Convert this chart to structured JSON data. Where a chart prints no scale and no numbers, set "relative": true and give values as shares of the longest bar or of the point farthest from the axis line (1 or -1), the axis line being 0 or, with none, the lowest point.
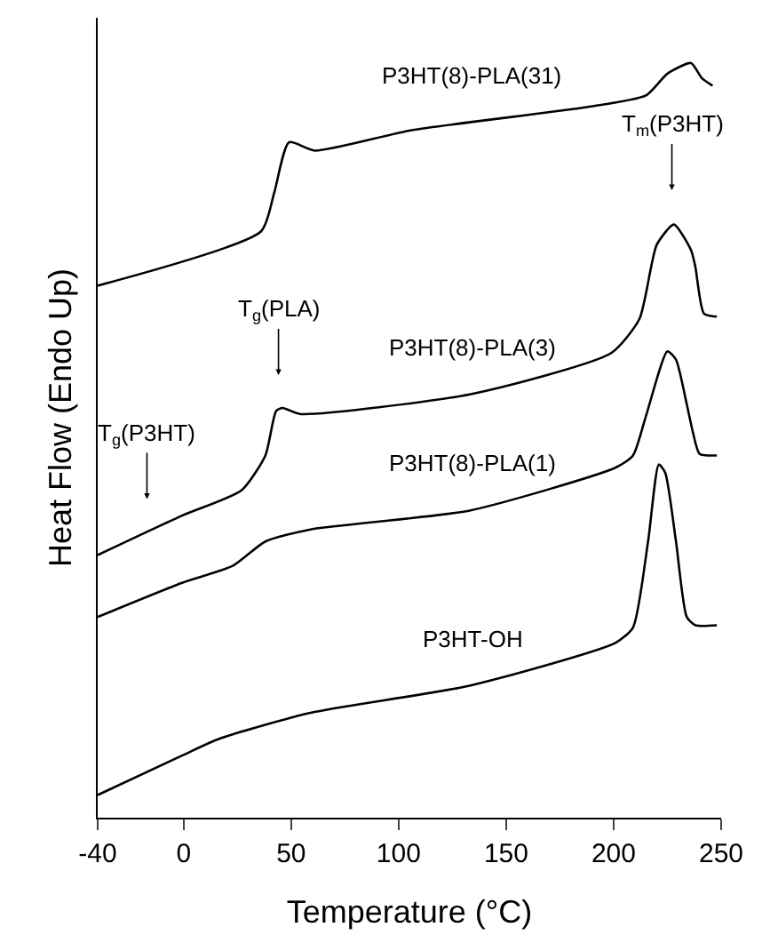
{
  "chart_data": {
    "type": "line",
    "relative": true,
    "xlabel": "Temperature (°C)",
    "ylabel": "Heat Flow (Endo Up)",
    "xlim": [
      -40,
      250
    ],
    "xticks": [
      -40,
      0,
      50,
      100,
      150,
      200,
      250
    ],
    "legend": false,
    "marker": "none",
    "line_style": "solid",
    "series": [
      {
        "name": "P3HT(8)-PLA(31)",
        "color": "#000000",
        "x": [
          -40,
          36,
          42,
          49,
          61,
          106,
          186,
          215,
          225,
          236,
          241,
          246
        ],
        "values": [
          0.705,
          0.777,
          0.827,
          0.895,
          0.884,
          0.911,
          0.941,
          0.957,
          0.986,
          1.0,
          0.98,
          0.97
        ]
      },
      {
        "name": "P3HT(8)-PLA(3)",
        "color": "#000000",
        "x": [
          -40,
          -1,
          27,
          38,
          43,
          46,
          54,
          133,
          199,
          212,
          220,
          228,
          236,
          238,
          242,
          248
        ],
        "values": [
          0.348,
          0.4,
          0.434,
          0.48,
          0.539,
          0.543,
          0.535,
          0.561,
          0.616,
          0.661,
          0.759,
          0.786,
          0.752,
          0.73,
          0.668,
          0.664
        ]
      },
      {
        "name": "P3HT(8)-PLA(1)",
        "color": "#000000",
        "x": [
          -40,
          -1,
          23,
          38,
          59,
          133,
          201,
          209,
          215,
          225,
          229,
          234,
          237,
          240,
          248
        ],
        "values": [
          0.266,
          0.311,
          0.334,
          0.366,
          0.382,
          0.407,
          0.464,
          0.48,
          0.532,
          0.618,
          0.607,
          0.548,
          0.509,
          0.482,
          0.48
        ]
      },
      {
        "name": "P3HT-OH",
        "color": "#000000",
        "x": [
          -40,
          -1,
          17,
          59,
          133,
          201,
          209,
          216,
          221,
          224,
          229,
          234,
          238,
          248
        ],
        "values": [
          0.03,
          0.082,
          0.105,
          0.139,
          0.175,
          0.232,
          0.252,
          0.366,
          0.468,
          0.457,
          0.366,
          0.266,
          0.255,
          0.255
        ]
      }
    ],
    "annotations": [
      "T$_{g}$(P3HT)",
      "T$_{g}$(PLA)",
      "T$_{m}$(P3HT)"
    ]
  }
}
